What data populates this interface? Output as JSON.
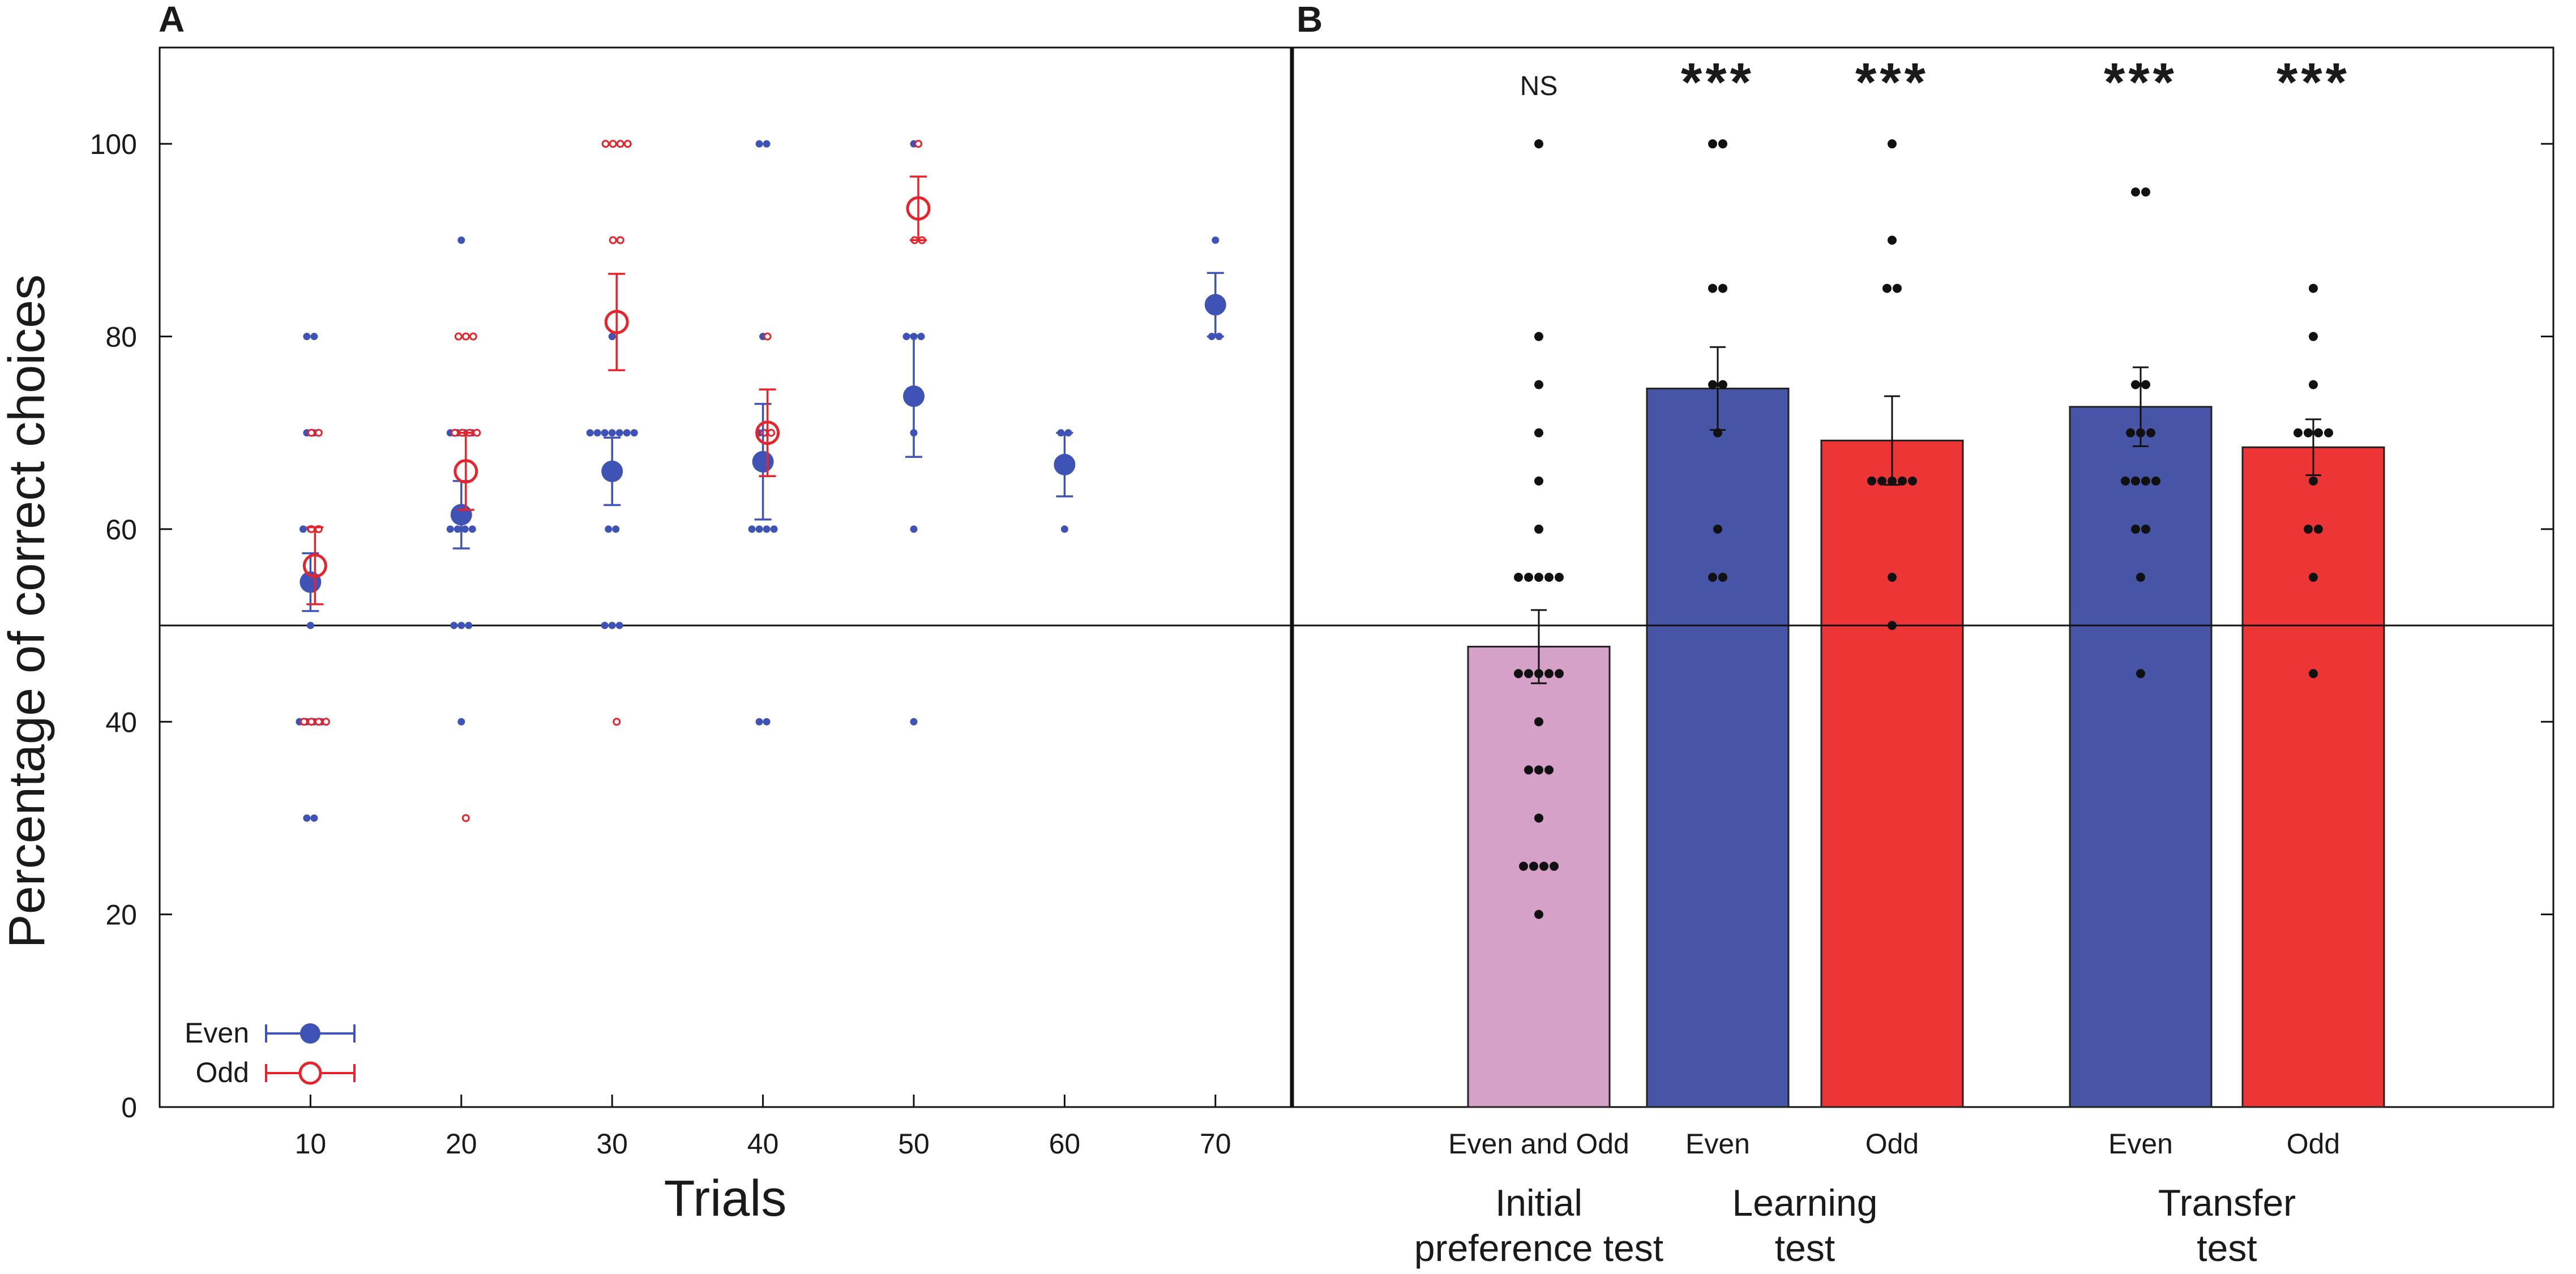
{
  "chart_data": [
    {
      "panel": "A",
      "type": "scatter",
      "xlabel": "Trials",
      "ylabel": "Percentage of correct choices",
      "xlim": [
        0,
        75
      ],
      "ylim": [
        0,
        110
      ],
      "xticks": [
        10,
        20,
        30,
        40,
        50,
        60,
        70
      ],
      "yticks": [
        0,
        20,
        40,
        60,
        80,
        100
      ],
      "reference_line": 50,
      "legend": {
        "placement": "bottom-left",
        "entries": [
          "Even",
          "Odd"
        ]
      },
      "series": [
        {
          "name": "Even",
          "color": "#3F52B5",
          "marker": "filled-circle",
          "means": [
            {
              "x": 10,
              "y": 54.5,
              "err": 3.0
            },
            {
              "x": 20,
              "y": 61.5,
              "err": 3.5
            },
            {
              "x": 30,
              "y": 66.0,
              "err": 3.5
            },
            {
              "x": 40,
              "y": 67.0,
              "err": 6.0
            },
            {
              "x": 50,
              "y": 73.8,
              "err": 6.3
            },
            {
              "x": 60,
              "y": 66.7,
              "err": 3.3
            },
            {
              "x": 70,
              "y": 83.3,
              "err": 3.3
            }
          ],
          "individual": [
            {
              "x": 10,
              "values": [
                30,
                30,
                40,
                40,
                40,
                40,
                50,
                60,
                60,
                60,
                70,
                70,
                80,
                80
              ]
            },
            {
              "x": 20,
              "values": [
                40,
                50,
                50,
                50,
                60,
                60,
                60,
                60,
                70,
                70,
                70,
                70,
                90
              ]
            },
            {
              "x": 30,
              "values": [
                50,
                50,
                50,
                60,
                60,
                70,
                70,
                70,
                70,
                70,
                70,
                70,
                80
              ]
            },
            {
              "x": 40,
              "values": [
                40,
                40,
                60,
                60,
                60,
                60,
                70,
                70,
                80,
                100,
                100
              ]
            },
            {
              "x": 50,
              "values": [
                40,
                60,
                70,
                80,
                80,
                80,
                100
              ]
            },
            {
              "x": 60,
              "values": [
                60,
                70,
                70
              ]
            },
            {
              "x": 70,
              "values": [
                80,
                80,
                90
              ]
            }
          ]
        },
        {
          "name": "Odd",
          "color": "#E8232C",
          "marker": "open-circle",
          "means": [
            {
              "x": 10,
              "y": 56.2,
              "err": 4.0
            },
            {
              "x": 20,
              "y": 66.0,
              "err": 4.0
            },
            {
              "x": 30,
              "y": 81.5,
              "err": 5.0
            },
            {
              "x": 40,
              "y": 70.0,
              "err": 4.5
            },
            {
              "x": 50,
              "y": 93.3,
              "err": 3.3
            }
          ],
          "individual": [
            {
              "x": 10,
              "values": [
                40,
                40,
                40,
                40,
                60,
                60,
                70,
                70
              ]
            },
            {
              "x": 20,
              "values": [
                30,
                70,
                70,
                70,
                70,
                80,
                80,
                80
              ]
            },
            {
              "x": 30,
              "values": [
                40,
                90,
                90,
                100,
                100,
                100,
                100
              ]
            },
            {
              "x": 40,
              "values": [
                70,
                70,
                80
              ]
            },
            {
              "x": 50,
              "values": [
                90,
                90,
                100
              ]
            }
          ]
        }
      ]
    },
    {
      "panel": "B",
      "type": "bar",
      "ylim": [
        0,
        110
      ],
      "yticks": [
        0,
        20,
        40,
        60,
        80,
        100
      ],
      "reference_line": 50,
      "categories": [
        "Even and Odd",
        "Even",
        "Odd",
        "Even",
        "Odd"
      ],
      "groups": [
        {
          "label_line1": "Initial",
          "label_line2": "preference test",
          "bars": [
            0
          ]
        },
        {
          "label_line1": "Learning",
          "label_line2": "test",
          "bars": [
            1,
            2
          ]
        },
        {
          "label_line1": "Transfer",
          "label_line2": "test",
          "bars": [
            3,
            4
          ]
        }
      ],
      "values": [
        47.8,
        74.6,
        69.2,
        72.7,
        68.5
      ],
      "errors": [
        3.8,
        4.3,
        4.6,
        4.1,
        2.9
      ],
      "colors": [
        "#D6A1C9",
        "#4755A6",
        "#EE3535",
        "#4755A6",
        "#EE3535"
      ],
      "significance": [
        "NS",
        "***",
        "***",
        "***",
        "***"
      ],
      "individual_points": [
        [
          20,
          25,
          25,
          25,
          25,
          30,
          35,
          35,
          35,
          40,
          45,
          45,
          45,
          45,
          45,
          55,
          55,
          55,
          55,
          55,
          60,
          65,
          70,
          75,
          80,
          100
        ],
        [
          55,
          55,
          60,
          70,
          75,
          75,
          85,
          85,
          100,
          100
        ],
        [
          50,
          55,
          65,
          65,
          65,
          65,
          65,
          85,
          85,
          90,
          100
        ],
        [
          45,
          55,
          60,
          60,
          65,
          65,
          65,
          65,
          70,
          70,
          70,
          75,
          75,
          95,
          95
        ],
        [
          45,
          55,
          60,
          60,
          65,
          70,
          70,
          70,
          70,
          75,
          80,
          85
        ]
      ]
    }
  ],
  "panel_labels": {
    "a": "A",
    "b": "B"
  }
}
